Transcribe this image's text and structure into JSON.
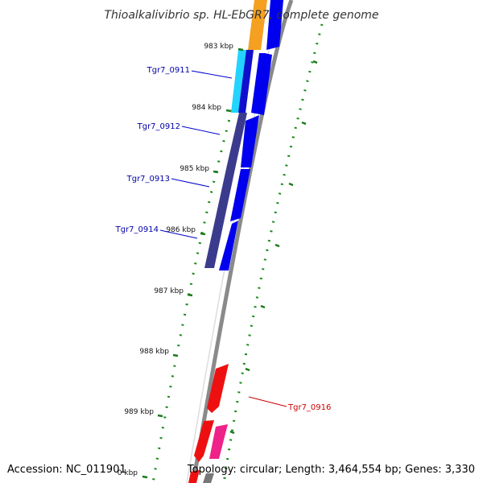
{
  "title": "Thioalkalivibrio sp. HL-EbGR7, complete genome",
  "accession": "Accession: NC_011901",
  "topology": "Topology: circular; Length: 3,464,554 bp; Genes: 3,330",
  "colors": {
    "backbone": "#8c8c8c",
    "tick": "#1a7a1a",
    "gene_blue": "#0000ee",
    "gene_navy": "#3a3a8a",
    "gene_orange": "#f0960a",
    "gene_cyan": "#00ccff",
    "gene_red": "#ee0000",
    "gene_pink": "#ee2288",
    "label_blue": "#0000aa",
    "label_red": "#cc0000"
  },
  "ticks": [
    {
      "label": "983 kbp"
    },
    {
      "label": "984 kbp"
    },
    {
      "label": "985 kbp"
    },
    {
      "label": "986 kbp"
    },
    {
      "label": "987 kbp"
    },
    {
      "label": "988 kbp"
    },
    {
      "label": "989 kbp"
    },
    {
      "label": "0 kbp"
    }
  ],
  "gene_labels": [
    {
      "text": "Tgr7_0911",
      "color": "blue"
    },
    {
      "text": "Tgr7_0912",
      "color": "blue"
    },
    {
      "text": "Tgr7_0913",
      "color": "blue"
    },
    {
      "text": "Tgr7_0914",
      "color": "blue"
    },
    {
      "text": "Tgr7_0916",
      "color": "red"
    }
  ]
}
